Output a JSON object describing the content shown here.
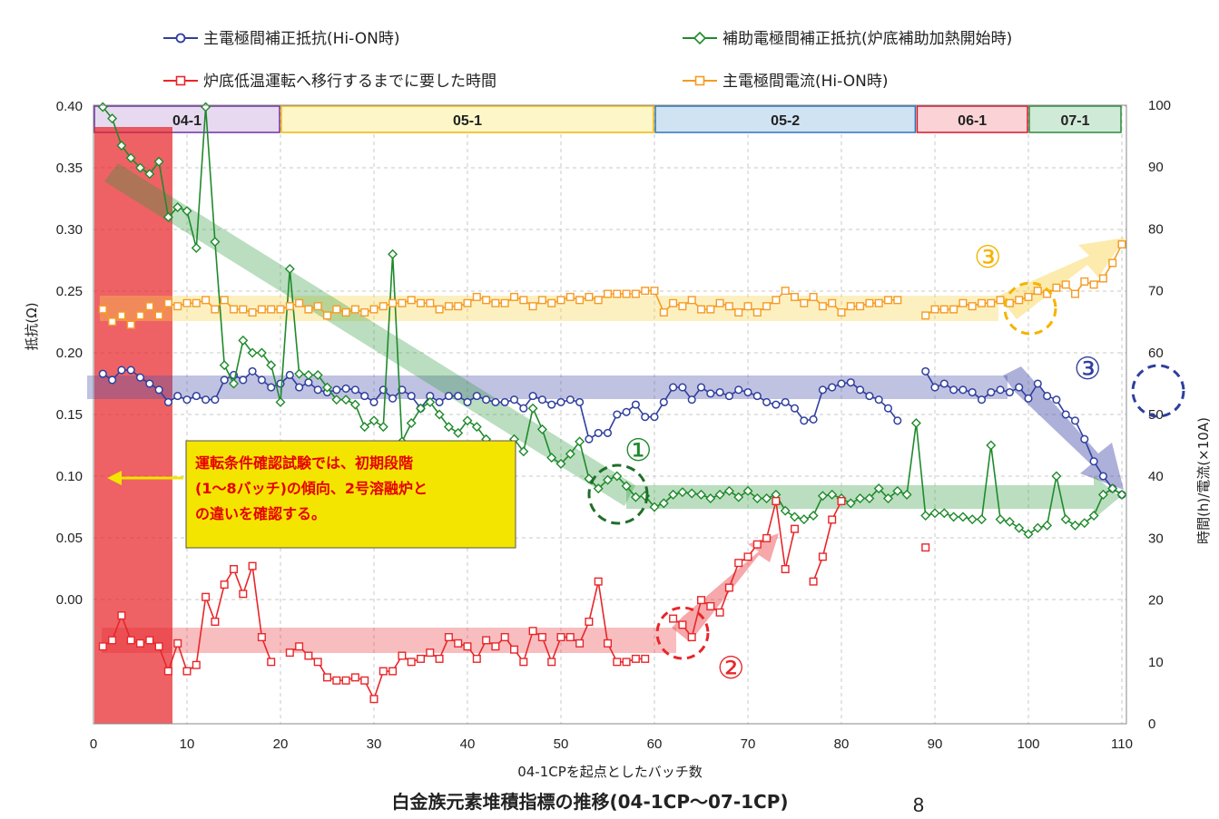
{
  "chart_data": {
    "type": "line",
    "title": "白金族元素堆積指標の推移(04-1CP～07-1CP)",
    "xlabel": "04-1CPを起点としたバッチ数",
    "ylabel_left": "抵抗(Ω)",
    "ylabel_right": "時間(h)/電流(×10A)",
    "xlim": [
      0,
      112
    ],
    "ylim_left": [
      -0.2,
      0.4
    ],
    "ylim_right": [
      0,
      100
    ],
    "x_ticks": [
      "0",
      "10",
      "20",
      "30",
      "40",
      "50",
      "60",
      "70",
      "80",
      "90",
      "100",
      "110"
    ],
    "y_left_ticks": [
      "0.40",
      "0.35",
      "0.30",
      "0.25",
      "0.20",
      "0.15",
      "0.10",
      "0.05",
      "0.00"
    ],
    "y_right_ticks": [
      "100",
      "90",
      "80",
      "70",
      "60",
      "50",
      "40",
      "30",
      "20",
      "10",
      "0"
    ],
    "grid": true,
    "legend_position": "top",
    "periods": [
      {
        "label": "04-1",
        "x0": 0,
        "x1": 20,
        "fill": "#e6d9f0",
        "stroke": "#7030a0"
      },
      {
        "label": "05-1",
        "x0": 20,
        "x1": 60,
        "fill": "#fdf6c9",
        "stroke": "#f2b705"
      },
      {
        "label": "05-2",
        "x0": 60,
        "x1": 88,
        "fill": "#cfe3f3",
        "stroke": "#2e75b6"
      },
      {
        "label": "06-1",
        "x0": 88,
        "x1": 100,
        "fill": "#fbd3d6",
        "stroke": "#d9152a"
      },
      {
        "label": "07-1",
        "x0": 100,
        "x1": 110,
        "fill": "#cfead6",
        "stroke": "#2e8b3a"
      }
    ],
    "series": [
      {
        "name": "主電極間補正抵抗(Hi-ON時)",
        "axis": "left",
        "color": "#2f3f9e",
        "marker": "circle",
        "x": [
          1,
          2,
          3,
          4,
          5,
          6,
          7,
          8,
          9,
          10,
          11,
          12,
          13,
          14,
          15,
          16,
          17,
          18,
          19,
          20,
          21,
          22,
          23,
          24,
          25,
          26,
          27,
          28,
          29,
          30,
          31,
          32,
          33,
          34,
          35,
          36,
          37,
          38,
          39,
          40,
          41,
          42,
          43,
          44,
          45,
          46,
          47,
          48,
          49,
          50,
          51,
          52,
          53,
          54,
          55,
          56,
          57,
          58,
          59,
          60,
          61,
          62,
          63,
          64,
          65,
          66,
          67,
          68,
          69,
          70,
          71,
          72,
          73,
          74,
          75,
          76,
          77,
          78,
          79,
          80,
          81,
          82,
          83,
          84,
          85,
          86,
          null,
          89,
          90,
          91,
          92,
          93,
          94,
          95,
          96,
          97,
          98,
          99,
          100,
          101,
          102,
          103,
          104,
          105,
          106,
          107,
          108,
          109,
          110
        ],
        "values": [
          0.183,
          0.178,
          0.186,
          0.186,
          0.18,
          0.175,
          0.17,
          0.16,
          0.165,
          0.162,
          0.165,
          0.162,
          0.162,
          0.178,
          0.182,
          0.178,
          0.185,
          0.178,
          0.172,
          0.175,
          0.182,
          0.172,
          0.176,
          0.17,
          0.168,
          0.17,
          0.171,
          0.17,
          0.165,
          0.16,
          0.17,
          0.163,
          0.17,
          0.165,
          0.155,
          0.165,
          0.16,
          0.165,
          0.165,
          0.16,
          0.165,
          0.162,
          0.16,
          0.16,
          0.162,
          0.155,
          0.165,
          0.162,
          0.158,
          0.16,
          0.162,
          0.16,
          0.13,
          0.135,
          0.135,
          0.15,
          0.152,
          0.158,
          0.148,
          0.148,
          0.16,
          0.172,
          0.172,
          0.162,
          0.172,
          0.167,
          0.168,
          0.165,
          0.17,
          0.168,
          0.165,
          0.16,
          0.158,
          0.16,
          0.155,
          0.145,
          0.146,
          0.17,
          0.172,
          0.175,
          0.176,
          0.17,
          0.165,
          0.162,
          0.155,
          0.145,
          null,
          0.185,
          0.172,
          0.175,
          0.17,
          0.17,
          0.168,
          0.162,
          0.168,
          0.17,
          0.168,
          0.172,
          0.163,
          0.175,
          0.165,
          0.162,
          0.15,
          0.145,
          0.13,
          0.112,
          0.1,
          0.09,
          0.085
        ]
      },
      {
        "name": "補助電極間補正抵抗(炉底補助加熱開始時)",
        "axis": "left",
        "color": "#1f8a2b",
        "marker": "diamond",
        "x": [
          1,
          2,
          3,
          4,
          5,
          6,
          7,
          8,
          9,
          10,
          11,
          12,
          13,
          14,
          15,
          16,
          17,
          18,
          19,
          20,
          21,
          22,
          23,
          24,
          25,
          26,
          27,
          28,
          29,
          30,
          31,
          32,
          33,
          34,
          35,
          36,
          37,
          38,
          39,
          40,
          41,
          42,
          43,
          44,
          45,
          46,
          47,
          48,
          49,
          50,
          51,
          52,
          53,
          54,
          55,
          56,
          57,
          58,
          59,
          60,
          61,
          62,
          63,
          64,
          65,
          66,
          67,
          68,
          69,
          70,
          71,
          72,
          73,
          74,
          75,
          76,
          77,
          78,
          79,
          80,
          81,
          82,
          83,
          84,
          85,
          86,
          87,
          88,
          89,
          90,
          91,
          92,
          93,
          94,
          95,
          96,
          97,
          98,
          99,
          100,
          101,
          102,
          103,
          104,
          105,
          106,
          107,
          108,
          109,
          110
        ],
        "values": [
          0.44,
          0.39,
          0.368,
          0.358,
          0.35,
          0.345,
          0.355,
          0.31,
          0.318,
          0.315,
          0.285,
          0.4,
          0.29,
          0.19,
          0.175,
          0.21,
          0.2,
          0.2,
          0.19,
          0.16,
          0.268,
          0.183,
          0.182,
          0.182,
          0.172,
          0.162,
          0.162,
          0.158,
          0.14,
          0.145,
          0.14,
          0.28,
          0.128,
          0.143,
          0.155,
          0.16,
          0.15,
          0.14,
          0.135,
          0.145,
          0.14,
          0.13,
          0.125,
          0.115,
          0.13,
          0.12,
          0.155,
          0.138,
          0.115,
          0.11,
          0.118,
          0.128,
          0.098,
          0.09,
          0.097,
          0.1,
          0.092,
          0.083,
          0.084,
          0.075,
          0.078,
          0.085,
          0.087,
          0.086,
          0.085,
          0.082,
          0.085,
          0.088,
          0.083,
          0.088,
          0.082,
          0.082,
          0.085,
          0.072,
          0.067,
          0.065,
          0.068,
          0.084,
          0.085,
          0.082,
          0.078,
          0.082,
          0.082,
          0.09,
          0.082,
          0.088,
          0.085,
          0.143,
          0.068,
          0.07,
          0.07,
          0.067,
          0.067,
          0.065,
          0.065,
          0.125,
          0.065,
          0.063,
          0.058,
          0.053,
          0.058,
          0.06,
          0.1,
          0.065,
          0.06,
          0.062,
          0.068,
          0.085,
          0.09,
          0.085
        ]
      },
      {
        "name": "炉底低温運転へ移行するまでに要した時間",
        "axis": "right",
        "color": "#e8262a",
        "marker": "square",
        "x": [
          1,
          2,
          3,
          4,
          5,
          6,
          7,
          8,
          9,
          10,
          11,
          12,
          13,
          14,
          15,
          16,
          17,
          18,
          19,
          null,
          21,
          22,
          23,
          24,
          25,
          26,
          27,
          28,
          29,
          30,
          31,
          32,
          33,
          34,
          35,
          36,
          37,
          38,
          39,
          40,
          41,
          42,
          43,
          44,
          45,
          46,
          47,
          48,
          49,
          50,
          51,
          52,
          53,
          54,
          55,
          56,
          57,
          58,
          59,
          null,
          62,
          63,
          64,
          65,
          66,
          67,
          68,
          69,
          70,
          71,
          72,
          73,
          74,
          75,
          null,
          77,
          78,
          79,
          80,
          null,
          89
        ],
        "values": [
          12.5,
          13.5,
          17.5,
          13.5,
          13,
          13.5,
          12.5,
          8.5,
          13,
          8.5,
          9.5,
          20.5,
          16.5,
          22.5,
          25,
          21,
          25.5,
          14,
          10,
          null,
          11.5,
          12.5,
          11,
          10,
          7.5,
          7,
          7,
          7.5,
          7,
          4,
          8.5,
          8.5,
          11,
          10,
          10.5,
          11.5,
          10.5,
          14,
          13,
          12.5,
          10.5,
          13.5,
          12.5,
          14,
          12,
          10,
          15,
          14,
          10,
          14,
          14,
          13,
          16.5,
          23,
          13,
          10,
          10,
          10.5,
          10.5,
          null,
          17,
          16,
          14,
          20,
          19,
          18,
          22,
          26,
          27,
          29,
          30,
          36,
          25,
          31.5,
          null,
          23,
          27,
          33,
          36,
          null,
          28.5
        ]
      },
      {
        "name": "主電極間電流(Hi-ON時)",
        "axis": "right",
        "color": "#f59b23",
        "marker": "square",
        "x": [
          1,
          2,
          3,
          4,
          5,
          6,
          7,
          8,
          9,
          10,
          11,
          12,
          13,
          14,
          15,
          16,
          17,
          18,
          19,
          20,
          21,
          22,
          23,
          24,
          25,
          26,
          27,
          28,
          29,
          30,
          31,
          32,
          33,
          34,
          35,
          36,
          37,
          38,
          39,
          40,
          41,
          42,
          43,
          44,
          45,
          46,
          47,
          48,
          49,
          50,
          51,
          52,
          53,
          54,
          55,
          56,
          57,
          58,
          59,
          60,
          61,
          62,
          63,
          64,
          65,
          66,
          67,
          68,
          69,
          70,
          71,
          72,
          73,
          74,
          75,
          76,
          77,
          78,
          79,
          80,
          81,
          82,
          83,
          84,
          85,
          86,
          null,
          89,
          90,
          91,
          92,
          93,
          94,
          95,
          96,
          97,
          98,
          99,
          100,
          101,
          102,
          103,
          104,
          105,
          106,
          107,
          108,
          109,
          110
        ],
        "values": [
          67,
          65,
          66,
          64.5,
          66,
          67.5,
          66,
          68,
          67.5,
          68,
          68,
          68.5,
          67,
          68.5,
          67,
          67,
          66.5,
          67,
          67,
          67,
          67.5,
          68,
          67,
          67.5,
          66,
          67,
          66.5,
          67,
          66.5,
          67,
          67.5,
          68,
          68,
          68.5,
          68,
          68,
          67,
          67.5,
          67.5,
          68,
          69,
          68.5,
          68,
          68,
          69,
          68.5,
          67.5,
          68.5,
          68,
          68.5,
          69,
          68.5,
          69,
          68.5,
          69.5,
          69.5,
          69.5,
          69.5,
          70,
          70,
          66.5,
          68,
          67.5,
          68.5,
          67,
          67,
          68,
          67.5,
          66.5,
          67.5,
          66.5,
          67.5,
          68.5,
          70,
          69,
          68,
          69,
          67.5,
          68,
          66.5,
          67.5,
          67.5,
          68,
          68,
          68.5,
          68.5,
          null,
          66,
          67,
          67,
          67,
          68,
          67.5,
          68,
          68,
          68.5,
          68,
          68.5,
          69,
          70,
          69.5,
          70.5,
          71,
          69.5,
          71.5,
          71,
          72,
          74.5,
          77.5
        ]
      }
    ],
    "annotations": {
      "note": [
        "運転条件確認試験では、初期段階",
        "(1～8バッチ)の傾向、2号溶融炉と",
        "の違いを確認する。"
      ],
      "markers": [
        "①",
        "②",
        "③",
        "③"
      ],
      "page_number": "8"
    }
  },
  "colors": {
    "blue": "#2f3f9e",
    "green": "#1f8a2b",
    "red": "#e8262a",
    "orange": "#f59b23",
    "highlight": "#f4e500"
  }
}
